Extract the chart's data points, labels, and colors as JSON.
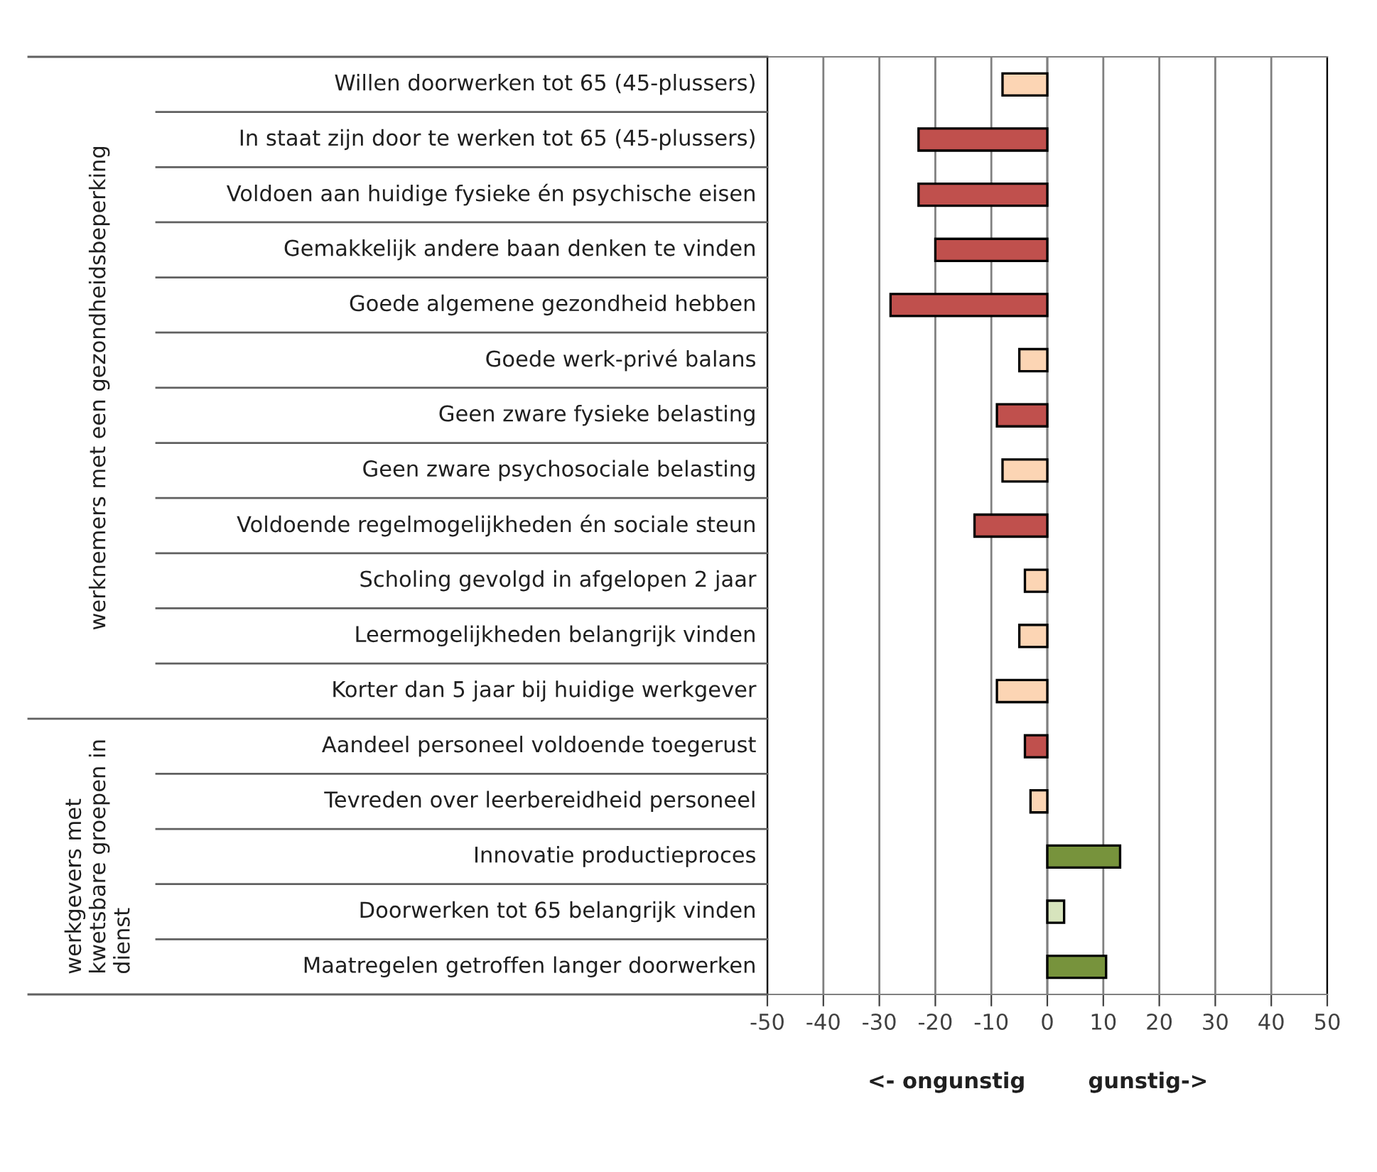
{
  "chart_data": {
    "type": "bar",
    "orientation": "horizontal",
    "categories": [
      "Willen doorwerken tot 65 (45-plussers)",
      "In staat zijn door te werken tot 65 (45-plussers)",
      "Voldoen aan huidige fysieke én psychische eisen",
      "Gemakkelijk andere baan denken te vinden",
      "Goede algemene gezondheid hebben",
      "Goede werk-privé balans",
      "Geen zware fysieke belasting",
      "Geen zware psychosociale belasting",
      "Voldoende regelmogelijkheden én sociale steun",
      "Scholing gevolgd in afgelopen 2 jaar",
      "Leermogelijkheden belangrijk vinden",
      "Korter dan 5 jaar bij huidige werkgever",
      "Aandeel personeel voldoende toegerust",
      "Tevreden over leerbereidheid personeel",
      "Innovatie productieproces",
      "Doorwerken tot 65 belangrijk vinden",
      "Maatregelen getroffen langer doorwerken"
    ],
    "values": [
      -8,
      -23,
      -23,
      -20,
      -28,
      -5,
      -9,
      -8,
      -13,
      -4,
      -5,
      -9,
      -4,
      -3,
      13,
      3,
      10.5
    ],
    "colors": [
      "#fcd5b4",
      "#c0504d",
      "#c0504d",
      "#c0504d",
      "#c0504d",
      "#fcd5b4",
      "#c0504d",
      "#fcd5b4",
      "#c0504d",
      "#fcd5b4",
      "#fcd5b4",
      "#fcd5b4",
      "#c0504d",
      "#fcd5b4",
      "#77933c",
      "#d7e4bd",
      "#77933c"
    ],
    "xlim": [
      -50,
      50
    ],
    "xticks": [
      -50,
      -40,
      -30,
      -20,
      -10,
      0,
      10,
      20,
      30,
      40,
      50
    ],
    "grid": "x",
    "annotations": [
      "werknemers met een gezondheidsbeperking",
      "werkgevers met kwetsbare groepen in dienst",
      "<- ongunstig",
      "gunstig->"
    ]
  }
}
